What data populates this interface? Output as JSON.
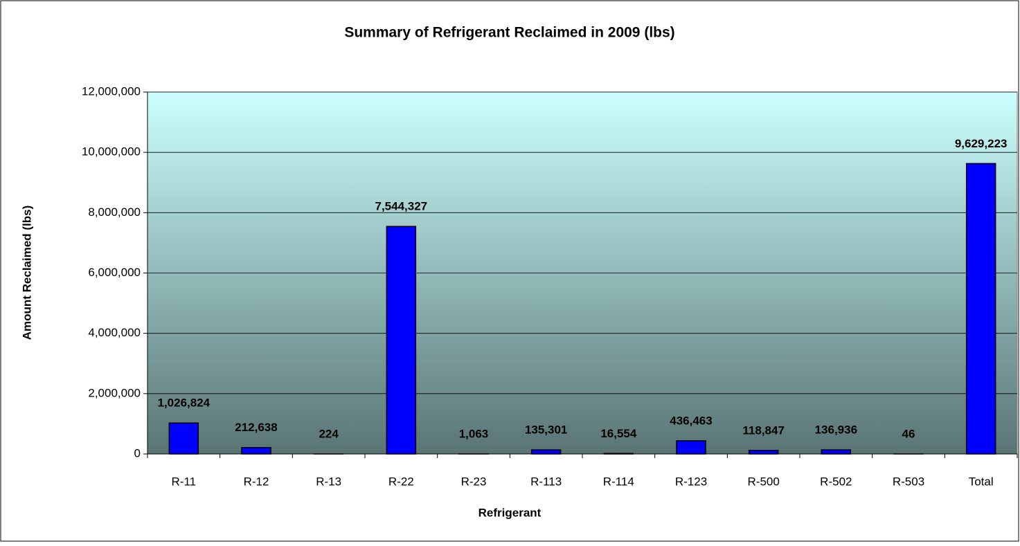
{
  "chart_data": {
    "type": "bar",
    "title": "Summary of Refrigerant Reclaimed in 2009 (lbs)",
    "x_label": "Refrigerant",
    "y_label": "Amount Reclaimed (lbs)",
    "categories": [
      "R-11",
      "R-12",
      "R-13",
      "R-22",
      "R-23",
      "R-113",
      "R-114",
      "R-123",
      "R-500",
      "R-502",
      "R-503",
      "Total"
    ],
    "values": [
      1026824,
      212638,
      224,
      7544327,
      1063,
      135301,
      16554,
      436463,
      118847,
      136936,
      46,
      9629223
    ],
    "value_labels": [
      "1,026,824",
      "212,638",
      "224",
      "7,544,327",
      "1,063",
      "135,301",
      "16,554",
      "436,463",
      "118,847",
      "136,936",
      "46",
      "9,629,223"
    ],
    "color": "#0000ff",
    "ylim": [
      0,
      12000000
    ],
    "yticks": [
      {
        "value": 0,
        "label": "0"
      },
      {
        "value": 2000000,
        "label": "2,000,000"
      },
      {
        "value": 4000000,
        "label": "4,000,000"
      },
      {
        "value": 6000000,
        "label": "6,000,000"
      },
      {
        "value": 8000000,
        "label": "8,000,000"
      },
      {
        "value": 10000000,
        "label": "10,000,000"
      },
      {
        "value": 12000000,
        "label": "12,000,000"
      }
    ],
    "grid": true
  }
}
